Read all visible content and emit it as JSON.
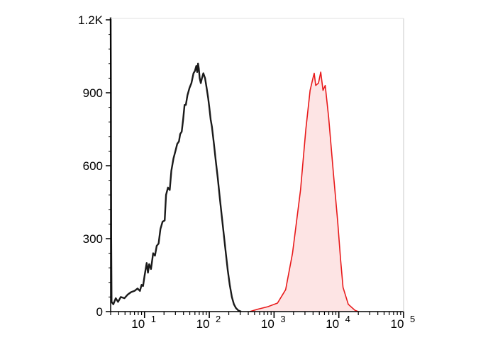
{
  "chart_data": {
    "type": "area",
    "x_scale": "log",
    "xlim": [
      3,
      100000
    ],
    "ylim": [
      0,
      1200
    ],
    "grid": false,
    "title": "",
    "xlabel": "",
    "ylabel": "",
    "y_ticks": [
      {
        "value": 0,
        "label": "0"
      },
      {
        "value": 300,
        "label": "300"
      },
      {
        "value": 600,
        "label": "600"
      },
      {
        "value": 900,
        "label": "900"
      },
      {
        "value": 1200,
        "label": "1.2K"
      }
    ],
    "x_ticks": [
      {
        "value": 10,
        "base": "10",
        "exp": "1"
      },
      {
        "value": 100,
        "base": "10",
        "exp": "2"
      },
      {
        "value": 1000,
        "base": "10",
        "exp": "3"
      },
      {
        "value": 10000,
        "base": "10",
        "exp": "4"
      },
      {
        "value": 100000,
        "base": "10",
        "exp": "5"
      }
    ],
    "series": [
      {
        "color": "#1a1a1a",
        "fill": "none",
        "points": [
          [
            3.0,
            1210
          ],
          [
            3.03,
            900
          ],
          [
            3.06,
            300
          ],
          [
            3.1,
            40
          ],
          [
            3.3,
            30
          ],
          [
            3.6,
            55
          ],
          [
            3.9,
            40
          ],
          [
            4.3,
            60
          ],
          [
            4.9,
            55
          ],
          [
            5.5,
            70
          ],
          [
            6.2,
            80
          ],
          [
            7.0,
            85
          ],
          [
            7.8,
            95
          ],
          [
            8.5,
            85
          ],
          [
            9.0,
            110
          ],
          [
            9.5,
            105
          ],
          [
            10.0,
            145
          ],
          [
            10.8,
            200
          ],
          [
            11.3,
            160
          ],
          [
            11.8,
            195
          ],
          [
            12.6,
            175
          ],
          [
            13.6,
            240
          ],
          [
            14.5,
            230
          ],
          [
            15.4,
            270
          ],
          [
            16.5,
            280
          ],
          [
            17.6,
            340
          ],
          [
            19.0,
            370
          ],
          [
            20.5,
            375
          ],
          [
            21.5,
            480
          ],
          [
            23.0,
            510
          ],
          [
            24.5,
            500
          ],
          [
            26.0,
            580
          ],
          [
            28.0,
            630
          ],
          [
            30.0,
            660
          ],
          [
            32.0,
            690
          ],
          [
            34.0,
            700
          ],
          [
            35.5,
            730
          ],
          [
            37.5,
            740
          ],
          [
            39.5,
            790
          ],
          [
            41.5,
            850
          ],
          [
            43.5,
            850
          ],
          [
            46.0,
            890
          ],
          [
            49.5,
            920
          ],
          [
            53.0,
            940
          ],
          [
            57.0,
            980
          ],
          [
            60.0,
            990
          ],
          [
            63.0,
            1010
          ],
          [
            65.0,
            985
          ],
          [
            67.0,
            1020
          ],
          [
            69.0,
            1000
          ],
          [
            71.0,
            960
          ],
          [
            74.0,
            940
          ],
          [
            77.0,
            960
          ],
          [
            81.0,
            980
          ],
          [
            86.0,
            960
          ],
          [
            91.0,
            920
          ],
          [
            96.0,
            880
          ],
          [
            100.0,
            840
          ],
          [
            105.0,
            790
          ],
          [
            110.0,
            760
          ],
          [
            118.0,
            690
          ],
          [
            126.0,
            620
          ],
          [
            135.0,
            550
          ],
          [
            145.0,
            470
          ],
          [
            155.0,
            400
          ],
          [
            167.0,
            320
          ],
          [
            180.0,
            240
          ],
          [
            193.0,
            170
          ],
          [
            207.0,
            110
          ],
          [
            223.0,
            60
          ],
          [
            240.0,
            30
          ],
          [
            258.0,
            15
          ],
          [
            280.0,
            5
          ],
          [
            310.0,
            0
          ]
        ]
      },
      {
        "color": "#e8191a",
        "fill": "#fde4e4",
        "points": [
          [
            420,
            0
          ],
          [
            560,
            10
          ],
          [
            800,
            20
          ],
          [
            1130,
            35
          ],
          [
            1510,
            90
          ],
          [
            1930,
            240
          ],
          [
            2560,
            500
          ],
          [
            3100,
            750
          ],
          [
            3600,
            910
          ],
          [
            3980,
            960
          ],
          [
            4170,
            980
          ],
          [
            4400,
            930
          ],
          [
            4850,
            940
          ],
          [
            5260,
            985
          ],
          [
            5700,
            910
          ],
          [
            6170,
            930
          ],
          [
            6960,
            800
          ],
          [
            8300,
            560
          ],
          [
            9600,
            370
          ],
          [
            10600,
            220
          ],
          [
            11600,
            100
          ],
          [
            14000,
            30
          ],
          [
            17800,
            5
          ],
          [
            20000,
            0
          ]
        ]
      }
    ]
  }
}
